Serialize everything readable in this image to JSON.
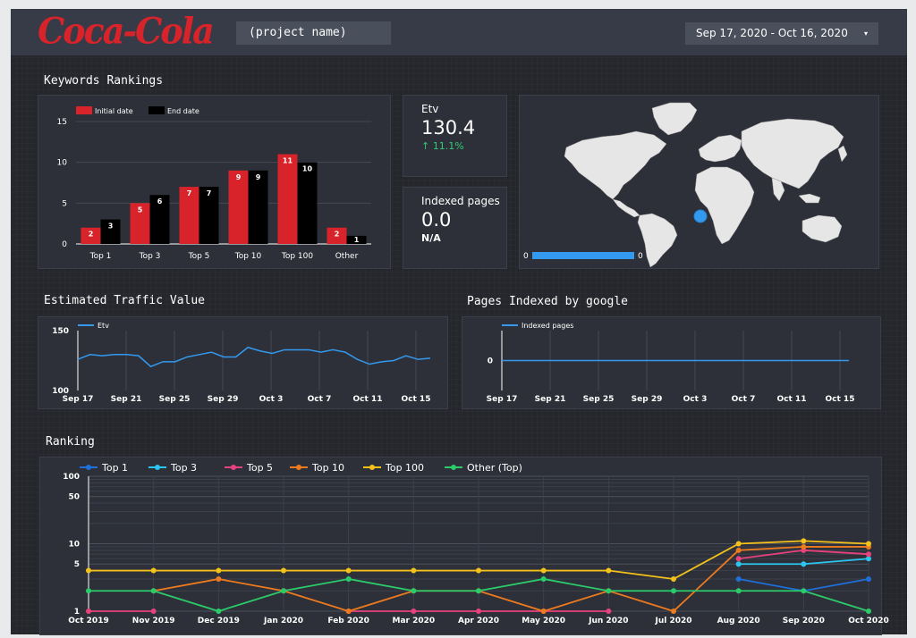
{
  "header": {
    "logo_text": "Coca-Cola",
    "project_name": "(project name)",
    "date_range": "Sep 17, 2020 - Oct 16, 2020",
    "date_caret": "▾"
  },
  "sections": {
    "keywords_rankings": "Keywords Rankings",
    "estimated_traffic_value": "Estimated Traffic Value",
    "pages_indexed": "Pages Indexed by google",
    "ranking": "Ranking"
  },
  "kpis": {
    "etv": {
      "label": "Etv",
      "value": "130.4",
      "change": "↑ 11.1%",
      "change_color": "#2ecc71"
    },
    "indexed": {
      "label": "Indexed pages",
      "value": "0.0",
      "change": "N/A"
    }
  },
  "map": {
    "legend_min": "0",
    "legend_max": "0",
    "bar_color": "#3399ee"
  },
  "colors": {
    "accent_red": "#d8232a",
    "blue": "#3399ee",
    "panel": "#2d3038"
  },
  "chart_data": [
    {
      "id": "keywords",
      "type": "bar",
      "categories": [
        "Top 1",
        "Top 3",
        "Top 5",
        "Top 10",
        "Top 100",
        "Other"
      ],
      "series": [
        {
          "name": "Initial date",
          "values": [
            2,
            5,
            7,
            9,
            11,
            2
          ],
          "color": "#d8232a"
        },
        {
          "name": "End date",
          "values": [
            3,
            6,
            7,
            9,
            10,
            1
          ],
          "color": "#000000"
        }
      ],
      "ylim": [
        0,
        15
      ],
      "yticks": [
        0,
        5,
        10,
        15
      ],
      "legend": "top-left",
      "grid": true
    },
    {
      "id": "etv",
      "type": "line",
      "series": [
        {
          "name": "Etv",
          "color": "#3399ee",
          "values": [
            126,
            130,
            129,
            130,
            130,
            129,
            120,
            124,
            124,
            128,
            130,
            132,
            128,
            128,
            136,
            133,
            131,
            134,
            134,
            134,
            132,
            134,
            132,
            126,
            122,
            124,
            125,
            129,
            126,
            127
          ]
        }
      ],
      "xticks": [
        "Sep 17",
        "Sep 21",
        "Sep 25",
        "Sep 29",
        "Oct 3",
        "Oct 7",
        "Oct 11",
        "Oct 15"
      ],
      "yticks": [
        100,
        150
      ],
      "ylim": [
        100,
        150
      ],
      "legend": "top-left",
      "grid": true
    },
    {
      "id": "indexed",
      "type": "line",
      "series": [
        {
          "name": "Indexed pages",
          "color": "#3399ee",
          "values": [
            0,
            0,
            0,
            0,
            0,
            0,
            0,
            0,
            0,
            0,
            0,
            0,
            0,
            0,
            0,
            0,
            0,
            0,
            0,
            0,
            0,
            0,
            0,
            0,
            0,
            0,
            0,
            0,
            0,
            0
          ]
        }
      ],
      "xticks": [
        "Sep 17",
        "Sep 21",
        "Sep 25",
        "Sep 29",
        "Oct 3",
        "Oct 7",
        "Oct 11",
        "Oct 15"
      ],
      "yticks": [
        0
      ],
      "legend": "top-left",
      "grid": true
    },
    {
      "id": "ranking",
      "type": "line",
      "scale": "log",
      "x": [
        "Oct 2019",
        "Nov 2019",
        "Dec 2019",
        "Jan 2020",
        "Feb 2020",
        "Mar 2020",
        "Apr 2020",
        "May 2020",
        "Jun 2020",
        "Jul 2020",
        "Aug 2020",
        "Sep 2020",
        "Oct 2020"
      ],
      "yticks": [
        1,
        5,
        10,
        50,
        100
      ],
      "ylim": [
        1,
        100
      ],
      "legend": "top-left",
      "grid": true,
      "series": [
        {
          "name": "Top 1",
          "color": "#1e6fd8",
          "values": [
            null,
            null,
            null,
            null,
            null,
            null,
            null,
            null,
            null,
            null,
            3,
            2,
            3
          ]
        },
        {
          "name": "Top 3",
          "color": "#2ac6ef",
          "values": [
            null,
            null,
            null,
            null,
            null,
            null,
            null,
            null,
            null,
            null,
            5,
            5,
            6
          ]
        },
        {
          "name": "Top 5",
          "color": "#e8427e",
          "values": [
            1,
            1,
            null,
            null,
            1,
            1,
            1,
            1,
            1,
            null,
            6,
            8,
            7
          ]
        },
        {
          "name": "Top 10",
          "color": "#ee7a1f",
          "values": [
            null,
            2,
            3,
            2,
            1,
            2,
            2,
            1,
            2,
            1,
            8,
            9,
            9
          ]
        },
        {
          "name": "Top 100",
          "color": "#f5c21b",
          "values": [
            4,
            4,
            4,
            4,
            4,
            4,
            4,
            4,
            4,
            3,
            10,
            11,
            10
          ]
        },
        {
          "name": "Other (Top)",
          "color": "#2bcb6a",
          "values": [
            2,
            2,
            1,
            2,
            3,
            2,
            2,
            3,
            2,
            2,
            2,
            2,
            1
          ]
        }
      ]
    }
  ]
}
